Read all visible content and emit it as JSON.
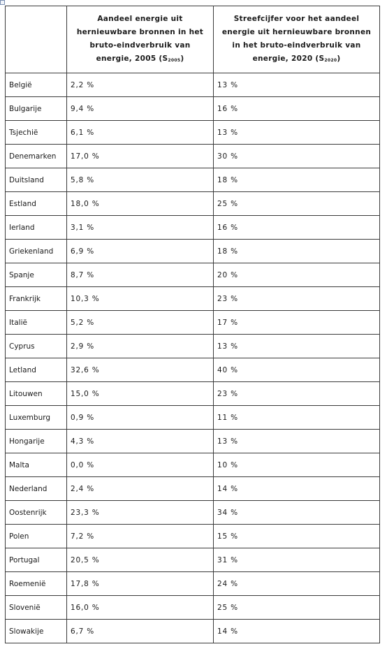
{
  "header": {
    "col1": "",
    "col2_main": "Aandeel energie uit hernieuwbare bronnen in het bruto-eindverbruik van energie, 2005 (S",
    "col2_sub": "2005",
    "col2_end": ")",
    "col3_main": "Streefcijfer voor het aandeel energie uit hernieuwbare bronnen in het bruto-eindverbruik van energie, 2020 (S",
    "col3_sub": "2020",
    "col3_end": ")"
  },
  "rows": [
    {
      "country": "België",
      "share_2005": "2,2 %",
      "target_2020": "13 %"
    },
    {
      "country": "Bulgarije",
      "share_2005": "9,4 %",
      "target_2020": "16 %"
    },
    {
      "country": "Tsjechië",
      "share_2005": "6,1 %",
      "target_2020": "13 %"
    },
    {
      "country": "Denemarken",
      "share_2005": "17,0 %",
      "target_2020": "30 %"
    },
    {
      "country": "Duitsland",
      "share_2005": "5,8 %",
      "target_2020": "18 %"
    },
    {
      "country": "Estland",
      "share_2005": "18,0 %",
      "target_2020": "25 %"
    },
    {
      "country": "Ierland",
      "share_2005": "3,1 %",
      "target_2020": "16 %"
    },
    {
      "country": "Griekenland",
      "share_2005": "6,9 %",
      "target_2020": "18 %"
    },
    {
      "country": "Spanje",
      "share_2005": "8,7 %",
      "target_2020": "20 %"
    },
    {
      "country": "Frankrijk",
      "share_2005": "10,3 %",
      "target_2020": "23 %"
    },
    {
      "country": "Italië",
      "share_2005": "5,2 %",
      "target_2020": "17 %"
    },
    {
      "country": "Cyprus",
      "share_2005": "2,9 %",
      "target_2020": "13 %"
    },
    {
      "country": "Letland",
      "share_2005": "32,6 %",
      "target_2020": "40 %"
    },
    {
      "country": "Litouwen",
      "share_2005": "15,0 %",
      "target_2020": "23 %"
    },
    {
      "country": "Luxemburg",
      "share_2005": "0,9 %",
      "target_2020": "11 %"
    },
    {
      "country": "Hongarije",
      "share_2005": "4,3 %",
      "target_2020": "13 %"
    },
    {
      "country": "Malta",
      "share_2005": "0,0 %",
      "target_2020": "10 %"
    },
    {
      "country": "Nederland",
      "share_2005": "2,4 %",
      "target_2020": "14 %"
    },
    {
      "country": "Oostenrijk",
      "share_2005": "23,3 %",
      "target_2020": "34 %"
    },
    {
      "country": "Polen",
      "share_2005": "7,2 %",
      "target_2020": "15 %"
    },
    {
      "country": "Portugal",
      "share_2005": "20,5 %",
      "target_2020": "31 %"
    },
    {
      "country": "Roemenië",
      "share_2005": "17,8 %",
      "target_2020": "24 %"
    },
    {
      "country": "Slovenië",
      "share_2005": "16,0 %",
      "target_2020": "25 %"
    },
    {
      "country": "Slowakije",
      "share_2005": "6,7 %",
      "target_2020": "14 %"
    }
  ]
}
